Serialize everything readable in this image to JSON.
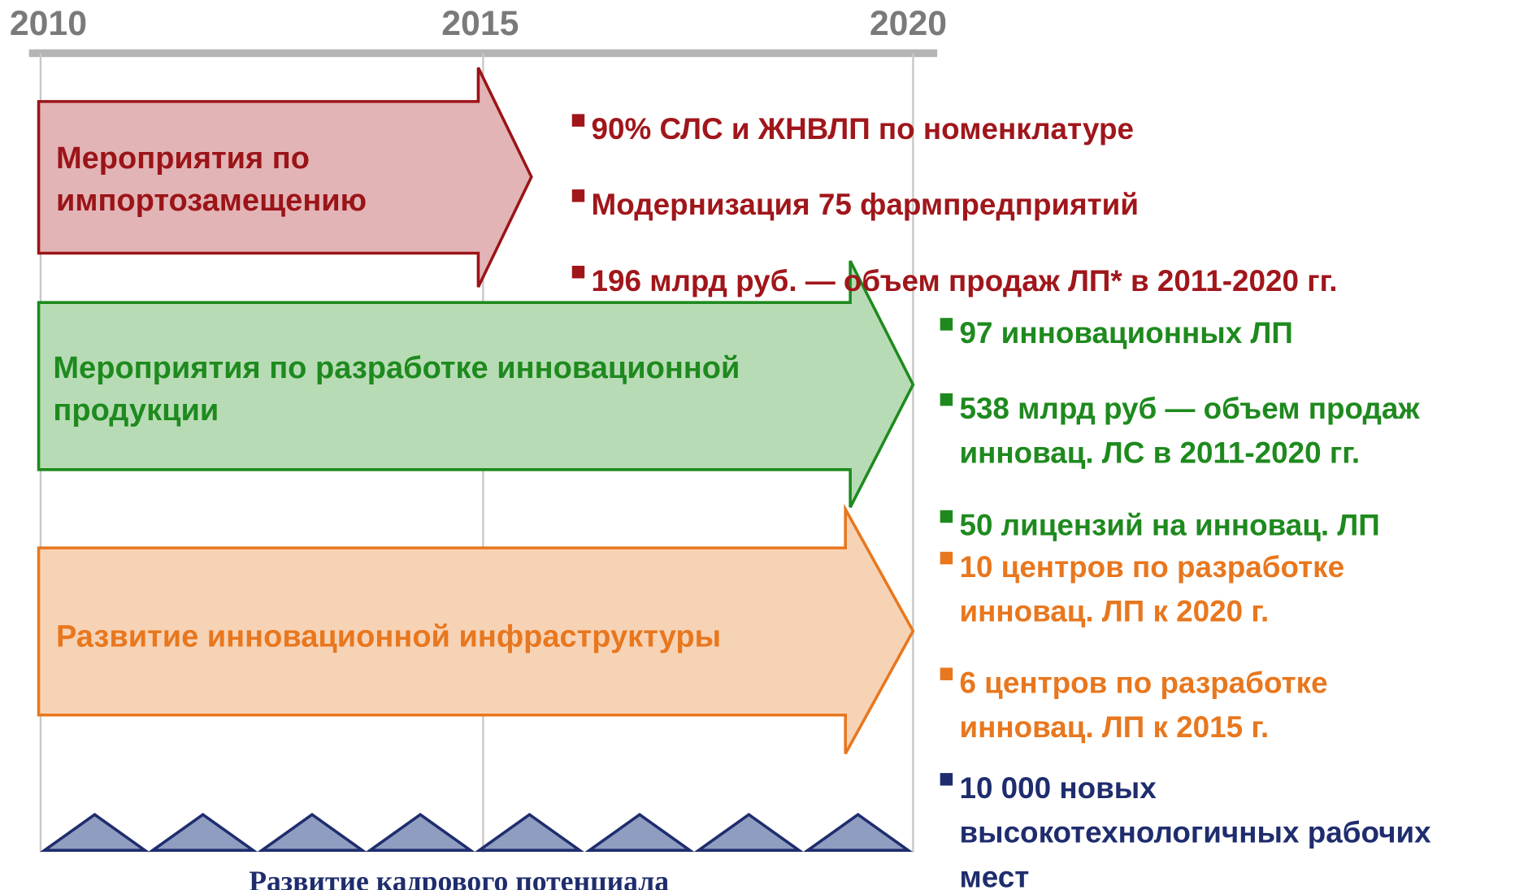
{
  "timeline": {
    "years": [
      "2010",
      "2015",
      "2020"
    ]
  },
  "arrows": [
    {
      "label": [
        "Мероприятия по",
        "импортозамещению"
      ]
    },
    {
      "label": [
        "Мероприятия по разработке инновационной",
        "продукции"
      ]
    },
    {
      "label": [
        "Развитие инновационной инфраструктуры"
      ]
    }
  ],
  "results": [
    {
      "items": [
        [
          "90% СЛС и ЖНВЛП по номенклатуре"
        ],
        [
          "Модернизация 75 фармпредприятий"
        ],
        [
          "196 млрд руб. — объем продаж ЛП* в 2011-2020 гг."
        ]
      ]
    },
    {
      "items": [
        [
          "97 инновационных ЛП"
        ],
        [
          "538 млрд руб — объем продаж",
          "инновац. ЛС в 2011-2020 гг."
        ],
        [
          "50 лицензий на инновац. ЛП"
        ]
      ]
    },
    {
      "items": [
        [
          "10 центров по разработке",
          "инновац. ЛП к 2020 г."
        ],
        [
          "6 центров по разработке",
          "инновац. ЛП к 2015 г."
        ]
      ]
    },
    {
      "items": [
        [
          "10 000  новых",
          "высокотехнологичных рабочих",
          "мест"
        ]
      ]
    }
  ],
  "footer": "Развитие кадрового потенциала"
}
